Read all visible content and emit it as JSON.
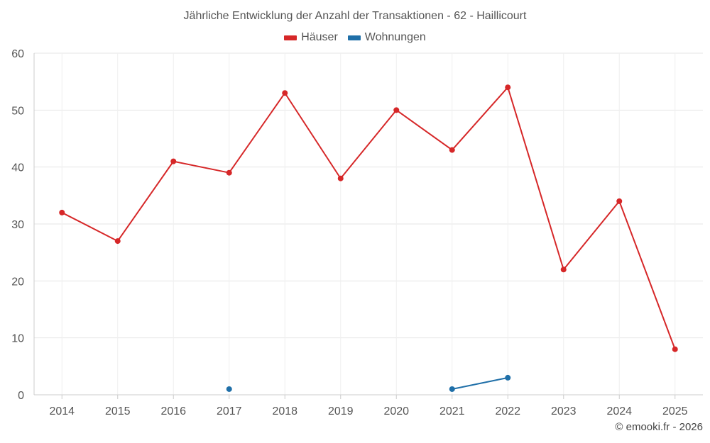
{
  "chart_data": {
    "type": "line",
    "title": "Jährliche Entwicklung der Anzahl der Transaktionen - 62 - Haillicourt",
    "categories": [
      "2014",
      "2015",
      "2016",
      "2017",
      "2018",
      "2019",
      "2020",
      "2021",
      "2022",
      "2023",
      "2024",
      "2025"
    ],
    "series": [
      {
        "name": "Häuser",
        "color": "#d62728",
        "values": [
          32,
          27,
          41,
          39,
          53,
          38,
          50,
          43,
          54,
          22,
          34,
          8
        ]
      },
      {
        "name": "Wohnungen",
        "color": "#1f6fa8",
        "values": [
          null,
          null,
          null,
          1,
          null,
          null,
          null,
          1,
          3,
          null,
          null,
          null
        ]
      }
    ],
    "ylim": [
      0,
      60
    ],
    "yticks": [
      "0",
      "10",
      "20",
      "30",
      "40",
      "50",
      "60"
    ],
    "xlabel": "",
    "ylabel": "",
    "grid": true,
    "legend": "top-center"
  },
  "credit": "© emooki.fr - 2026"
}
